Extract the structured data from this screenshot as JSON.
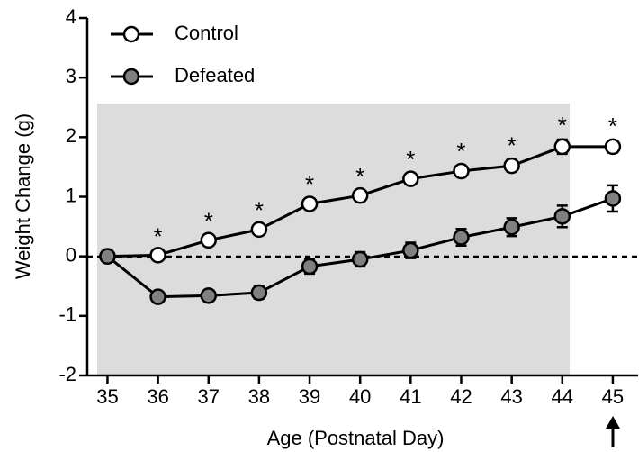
{
  "chart_data": {
    "type": "line",
    "xlabel": "Age (Postnatal Day)",
    "ylabel": "Weight Change (g)",
    "x": [
      35,
      36,
      37,
      38,
      39,
      40,
      41,
      42,
      43,
      44,
      45
    ],
    "series": [
      {
        "name": "Control",
        "color": "#ffffff",
        "values": [
          0,
          0.02,
          0.27,
          0.45,
          0.88,
          1.02,
          1.3,
          1.43,
          1.52,
          1.84,
          1.84
        ],
        "errors": [
          0,
          0.07,
          0.08,
          0.08,
          0.09,
          0.08,
          0.08,
          0.09,
          0.1,
          0.12,
          0.1
        ]
      },
      {
        "name": "Defeated",
        "color": "#808080",
        "values": [
          0,
          -0.68,
          -0.66,
          -0.61,
          -0.17,
          -0.05,
          0.1,
          0.32,
          0.49,
          0.67,
          0.97
        ],
        "errors": [
          0,
          0.07,
          0.08,
          0.1,
          0.12,
          0.12,
          0.13,
          0.14,
          0.15,
          0.18,
          0.22
        ]
      }
    ],
    "annotations": [
      {
        "x": 36,
        "text": "*"
      },
      {
        "x": 37,
        "text": "*"
      },
      {
        "x": 38,
        "text": "*"
      },
      {
        "x": 39,
        "text": "*"
      },
      {
        "x": 40,
        "text": "*"
      },
      {
        "x": 41,
        "text": "*"
      },
      {
        "x": 42,
        "text": "*"
      },
      {
        "x": 43,
        "text": "*"
      },
      {
        "x": 44,
        "text": "*"
      },
      {
        "x": 45,
        "text": "*"
      }
    ],
    "xlim": [
      34.6,
      45.5
    ],
    "xticks": [
      35,
      36,
      37,
      38,
      39,
      40,
      41,
      42,
      43,
      44,
      45
    ],
    "ylim": [
      -2,
      4
    ],
    "yticks": [
      -2,
      -1,
      0,
      1,
      2,
      3,
      4
    ],
    "legend": "upper left"
  }
}
